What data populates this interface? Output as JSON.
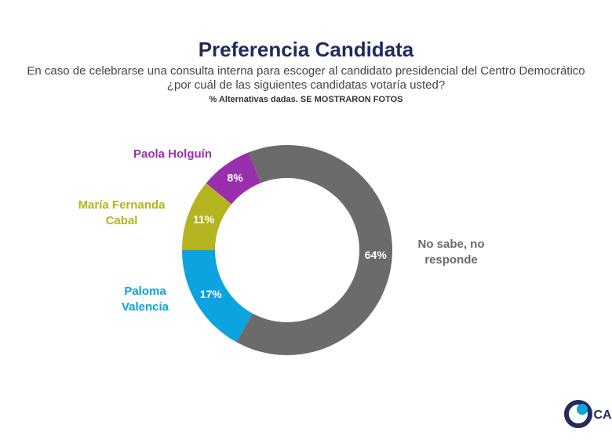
{
  "chart_data": {
    "type": "donut",
    "title": "Preferencia Candidata",
    "subtitle": [
      "En caso de celebrarse una consulta interna para escoger al candidato presidencial del Centro Democrático",
      "¿por cuál de las siguientes candidatas votaría usted?"
    ],
    "note": "% Alternativas dadas. SE MOSTRARON FOTOS",
    "categories": [
      "No sabe, no responde",
      "Paloma Valencia",
      "María Fernanda Cabal",
      "Paola Holguín"
    ],
    "values": [
      64,
      17,
      11,
      8
    ],
    "value_labels": [
      "64%",
      "17%",
      "11%",
      "8%"
    ],
    "colors": [
      "#6b6b6b",
      "#0ba3e0",
      "#b3b41f",
      "#9a2fae"
    ],
    "logo": "CA"
  }
}
